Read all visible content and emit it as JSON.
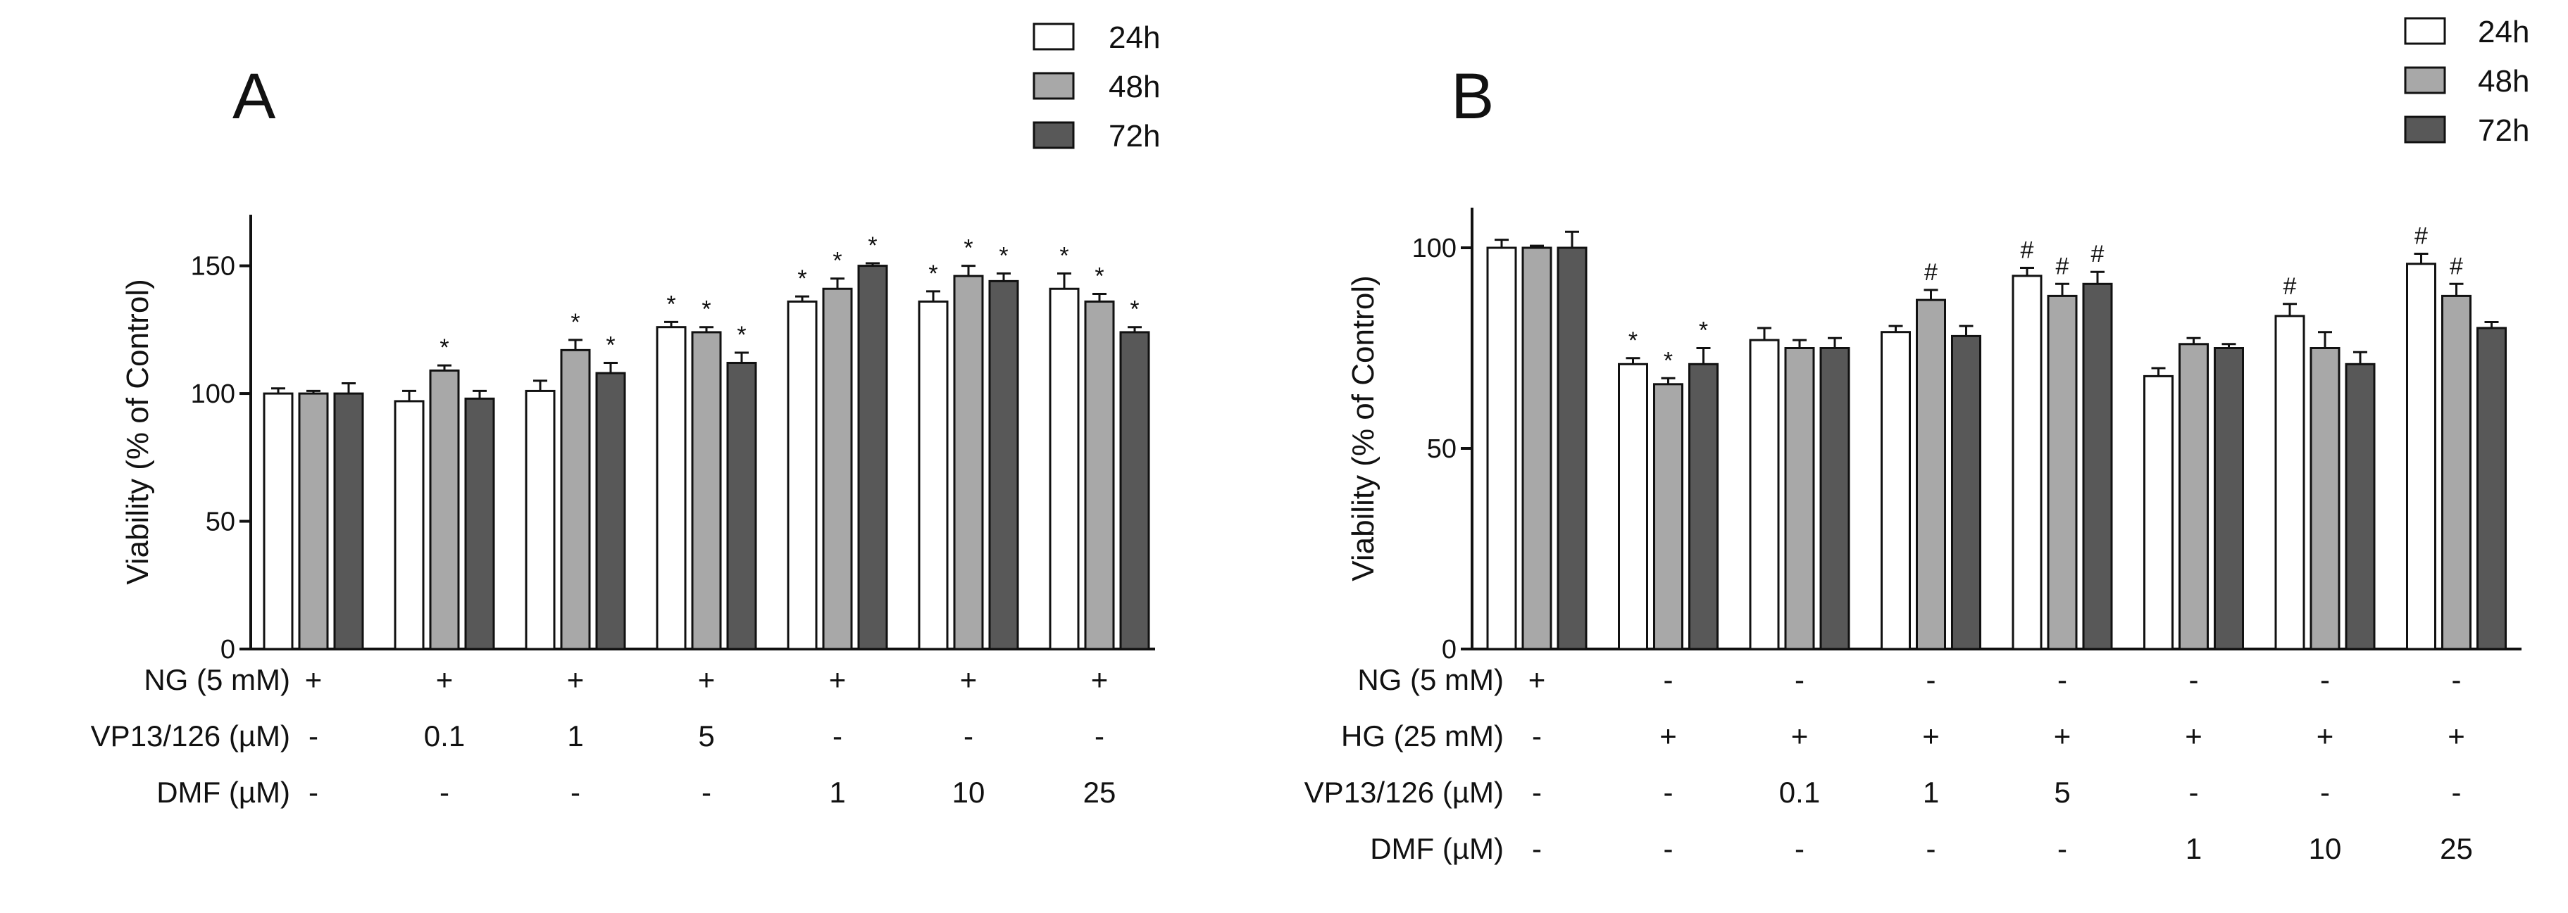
{
  "chart_data": [
    {
      "panel": "A",
      "type": "bar",
      "ylabel": "Viability (% of Control)",
      "ylim": [
        0,
        170
      ],
      "yticks": [
        0,
        50,
        100,
        150
      ],
      "legend": {
        "position": "top-right",
        "entries": [
          "24h",
          "48h",
          "72h"
        ]
      },
      "series": [
        {
          "name": "24h",
          "color": "#ffffff",
          "values": [
            100,
            97,
            101,
            126,
            136,
            136,
            141
          ],
          "errors": [
            2,
            4,
            4,
            2,
            2,
            4,
            6
          ],
          "marks": [
            "",
            "",
            "",
            "*",
            "*",
            "*",
            "*"
          ]
        },
        {
          "name": "48h",
          "color": "#a8a8a8",
          "values": [
            100,
            109,
            117,
            124,
            141,
            146,
            136
          ],
          "errors": [
            1,
            2,
            4,
            2,
            4,
            4,
            3
          ],
          "marks": [
            "",
            "*",
            "*",
            "*",
            "*",
            "*",
            "*"
          ]
        },
        {
          "name": "72h",
          "color": "#585858",
          "values": [
            100,
            98,
            108,
            112,
            150,
            144,
            124
          ],
          "errors": [
            4,
            3,
            4,
            4,
            1,
            3,
            2
          ],
          "marks": [
            "",
            "",
            "*",
            "*",
            "*",
            "*",
            "*"
          ]
        }
      ],
      "treatment_rows": [
        {
          "label": "NG (5 mM)",
          "values": [
            "+",
            "+",
            "+",
            "+",
            "+",
            "+",
            "+"
          ]
        },
        {
          "label": "VP13/126 (µM)",
          "values": [
            "-",
            "0.1",
            "1",
            "5",
            "-",
            "-",
            "-"
          ]
        },
        {
          "label": "DMF (µM)",
          "values": [
            "-",
            "-",
            "-",
            "-",
            "1",
            "10",
            "25"
          ]
        }
      ]
    },
    {
      "panel": "B",
      "type": "bar",
      "ylabel": "Viability (% of Control)",
      "ylim": [
        0,
        110
      ],
      "yticks": [
        0,
        50,
        100
      ],
      "legend": {
        "position": "top-right",
        "entries": [
          "24h",
          "48h",
          "72h"
        ]
      },
      "series": [
        {
          "name": "24h",
          "color": "#ffffff",
          "values": [
            100,
            71,
            77,
            79,
            93,
            68,
            83,
            96
          ],
          "errors": [
            2,
            1.5,
            3,
            1.5,
            2,
            2,
            3,
            2.5
          ],
          "marks": [
            "",
            "*",
            "",
            "",
            "#",
            "",
            "#",
            "#"
          ]
        },
        {
          "name": "48h",
          "color": "#a8a8a8",
          "values": [
            100,
            66,
            75,
            87,
            88,
            76,
            75,
            88
          ],
          "errors": [
            0.5,
            1.5,
            2,
            2.5,
            3,
            1.5,
            4,
            3
          ],
          "marks": [
            "",
            "*",
            "",
            "#",
            "#",
            "",
            "",
            "#"
          ]
        },
        {
          "name": "72h",
          "color": "#585858",
          "values": [
            100,
            71,
            75,
            78,
            91,
            75,
            71,
            80
          ],
          "errors": [
            4,
            4,
            2.5,
            2.5,
            3,
            1,
            3,
            1.5
          ],
          "marks": [
            "",
            "*",
            "",
            "",
            "#",
            "",
            "",
            ""
          ]
        }
      ],
      "treatment_rows": [
        {
          "label": "NG (5 mM)",
          "values": [
            "+",
            "-",
            "-",
            "-",
            "-",
            "-",
            "-",
            "-"
          ]
        },
        {
          "label": "HG (25 mM)",
          "values": [
            "-",
            "+",
            "+",
            "+",
            "+",
            "+",
            "+",
            "+"
          ]
        },
        {
          "label": "VP13/126 (µM)",
          "values": [
            "-",
            "-",
            "0.1",
            "1",
            "5",
            "-",
            "-",
            "-"
          ]
        },
        {
          "label": "DMF (µM)",
          "values": [
            "-",
            "-",
            "-",
            "-",
            "-",
            "1",
            "10",
            "25"
          ]
        }
      ]
    }
  ]
}
